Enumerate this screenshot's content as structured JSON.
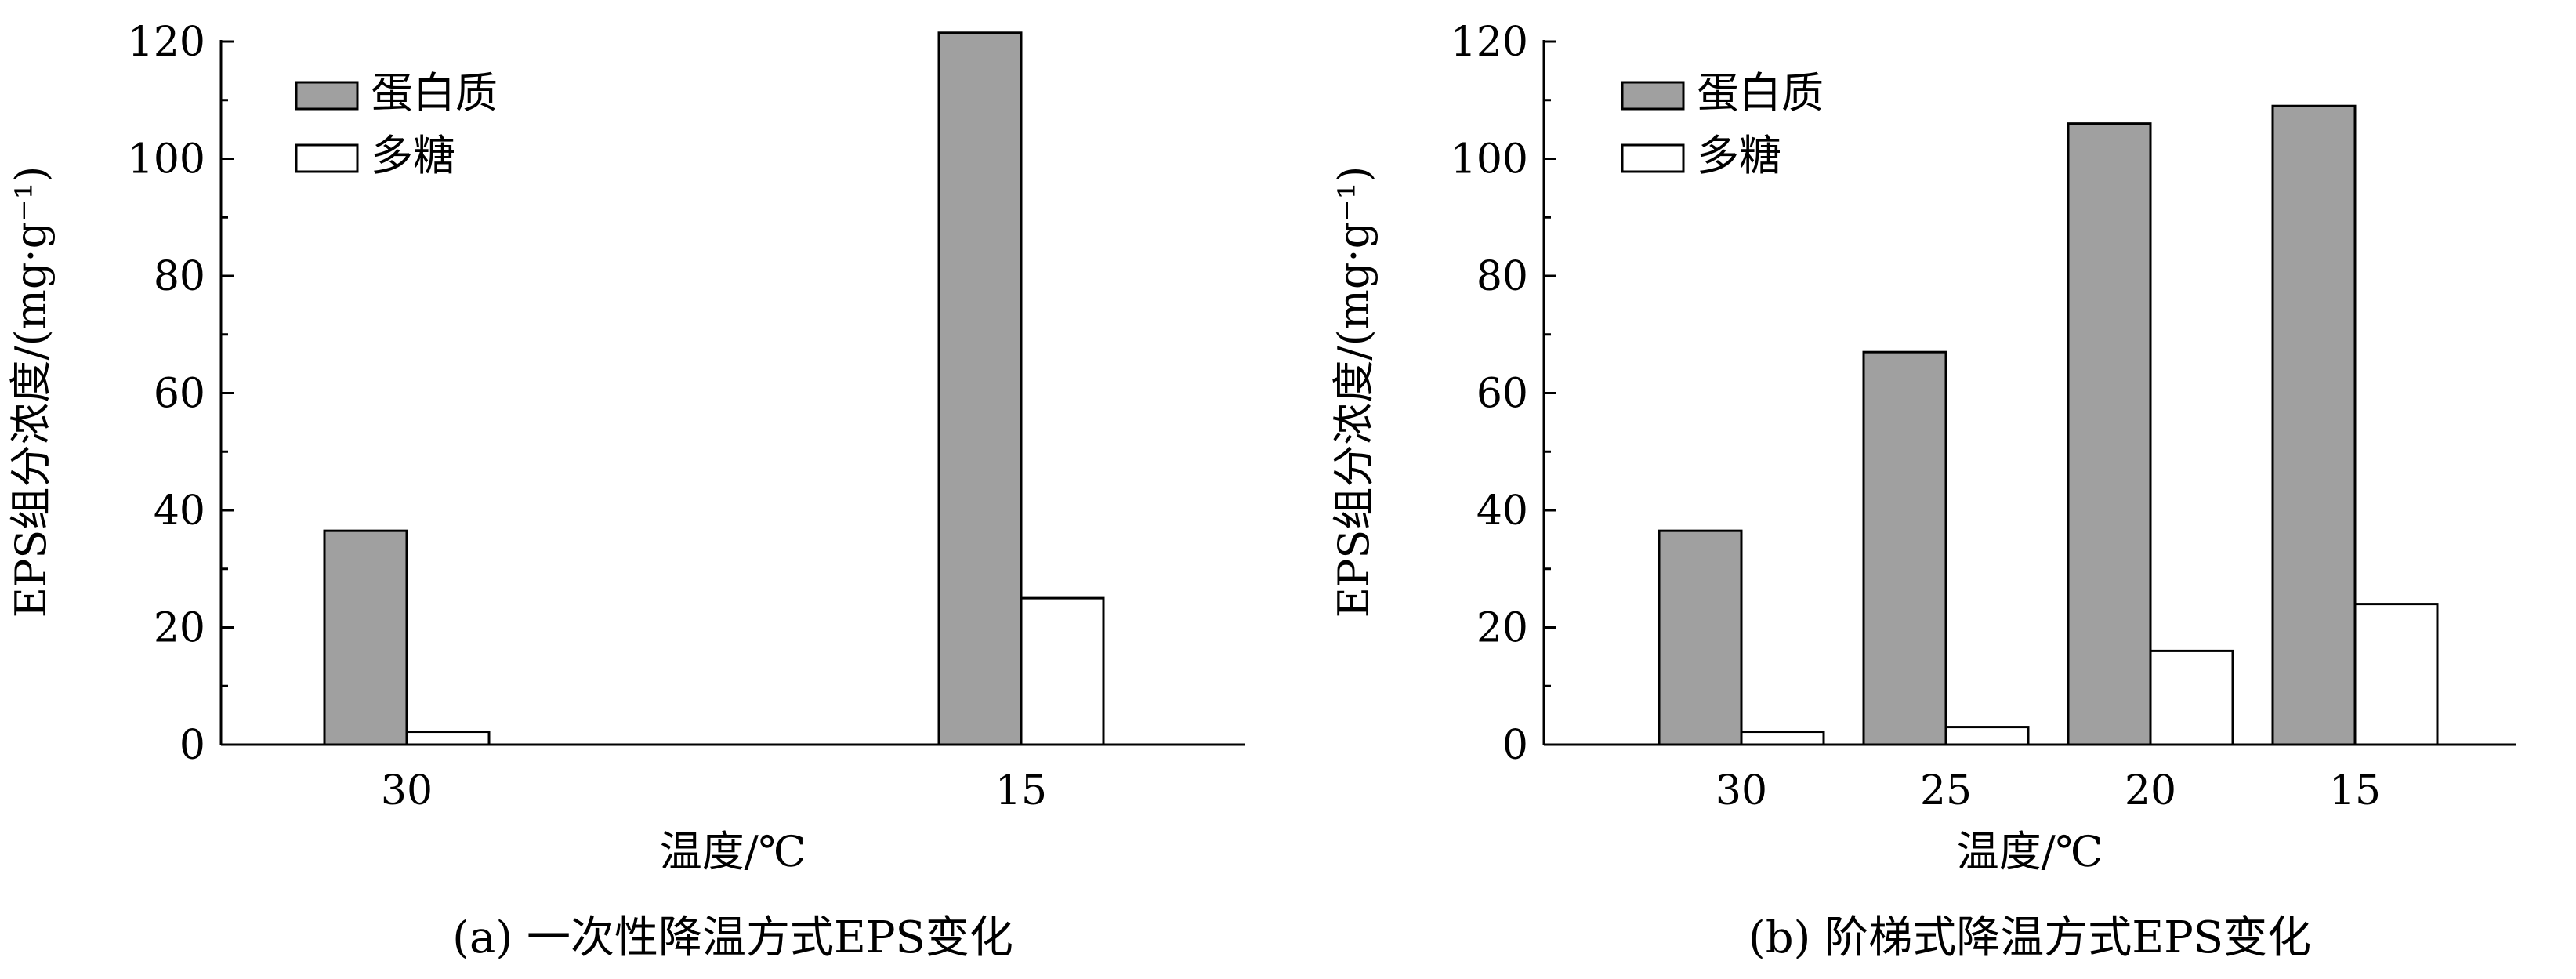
{
  "colors": {
    "protein": "#a0a0a0",
    "polysaccharide": "#ffffff",
    "outline": "#000000"
  },
  "chart_data": [
    {
      "type": "bar",
      "caption": "(a) 一次性降温方式EPS变化",
      "xlabel": "温度/℃",
      "ylabel": "EPS组分浓度/(mg·g⁻¹)",
      "categories": [
        "30",
        "15"
      ],
      "ylim": [
        0,
        120
      ],
      "yticks": [
        0,
        20,
        40,
        60,
        80,
        100,
        120
      ],
      "series": [
        {
          "name": "蛋白质",
          "color": "#a0a0a0",
          "values": [
            36.5,
            121.5
          ]
        },
        {
          "name": "多糖",
          "color": "#ffffff",
          "values": [
            2.2,
            25.0
          ]
        }
      ],
      "legend": "top-left",
      "grid": false
    },
    {
      "type": "bar",
      "caption": "(b) 阶梯式降温方式EPS变化",
      "xlabel": "温度/℃",
      "ylabel": "EPS组分浓度/(mg·g⁻¹)",
      "categories": [
        "30",
        "25",
        "20",
        "15"
      ],
      "ylim": [
        0,
        120
      ],
      "yticks": [
        0,
        20,
        40,
        60,
        80,
        100,
        120
      ],
      "series": [
        {
          "name": "蛋白质",
          "color": "#a0a0a0",
          "values": [
            36.5,
            67.0,
            106.0,
            109.0
          ]
        },
        {
          "name": "多糖",
          "color": "#ffffff",
          "values": [
            2.2,
            3.0,
            16.0,
            24.0
          ]
        }
      ],
      "legend": "top-left",
      "grid": false
    }
  ]
}
